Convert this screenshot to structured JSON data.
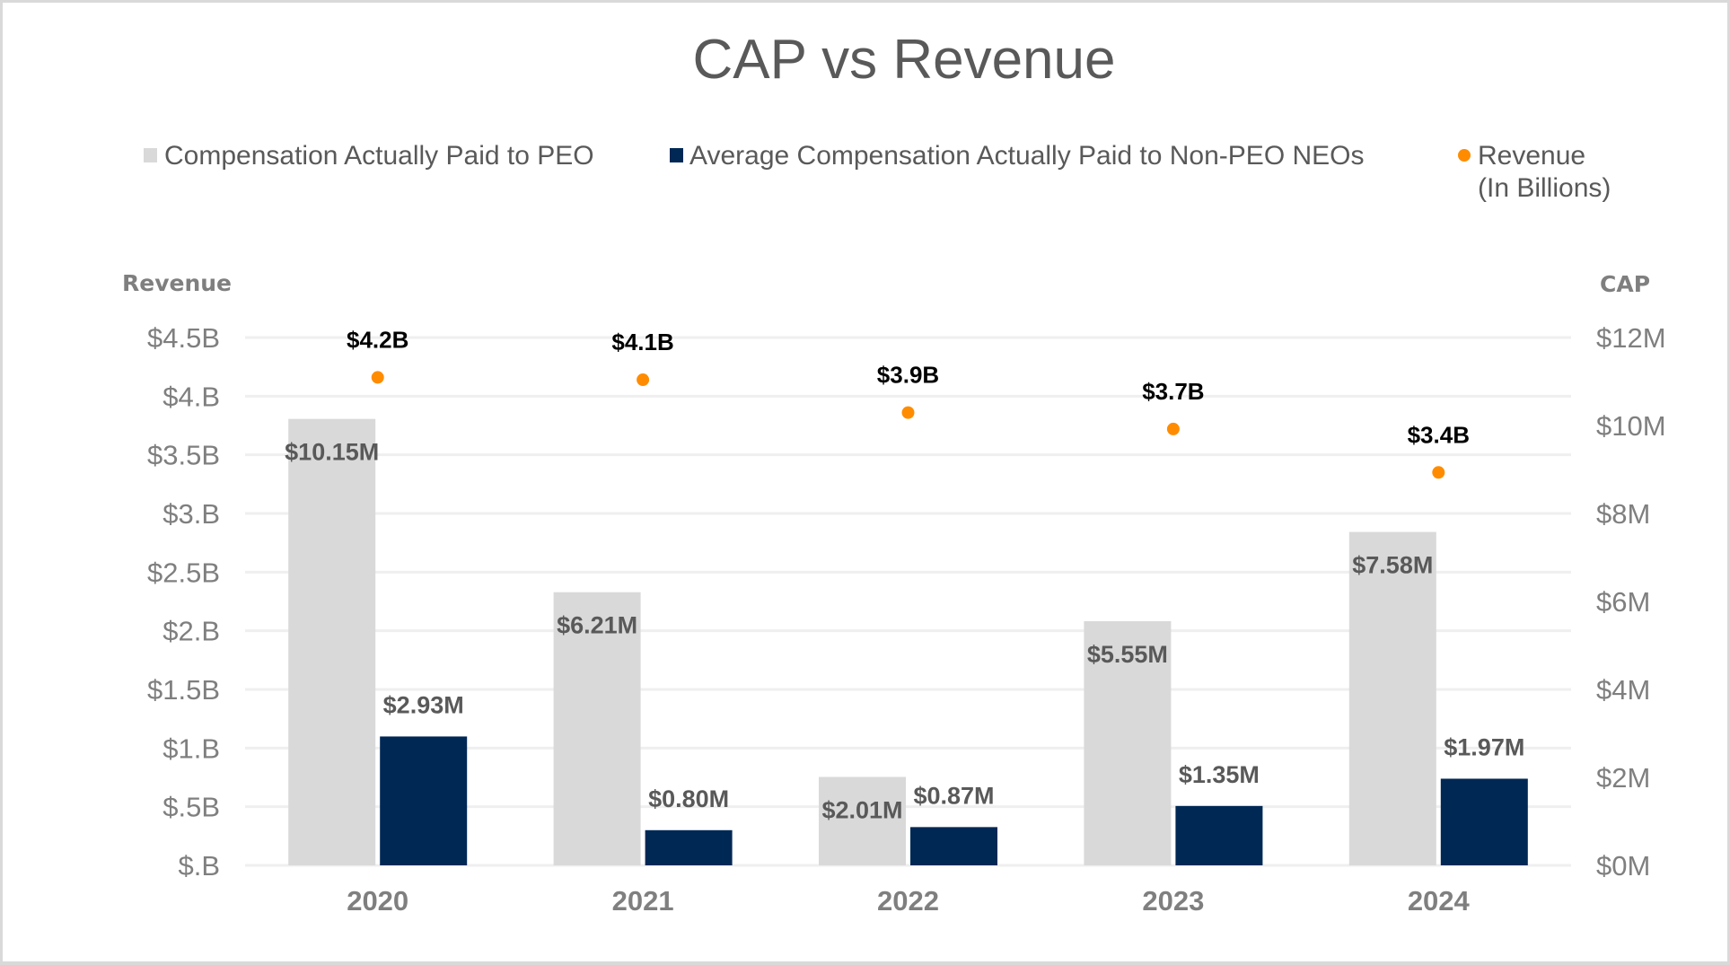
{
  "chart_data": {
    "type": "bar",
    "title": "CAP vs Revenue",
    "categories": [
      "2020",
      "2021",
      "2022",
      "2023",
      "2024"
    ],
    "series": [
      {
        "name": "Compensation Actually Paid to PEO",
        "kind": "bar",
        "axis": "right",
        "color": "#d9d9d9",
        "values": [
          10.15,
          6.21,
          2.01,
          5.55,
          7.58
        ],
        "labels": [
          "$10.15M",
          "$6.21M",
          "$2.01M",
          "$5.55M",
          "$7.58M"
        ],
        "label_position": "inside-top"
      },
      {
        "name": "Average Compensation Actually Paid to Non-PEO NEOs",
        "kind": "bar",
        "axis": "right",
        "color": "#002855",
        "values": [
          2.93,
          0.8,
          0.87,
          1.35,
          1.97
        ],
        "labels": [
          "$2.93M",
          "$0.80M",
          "$0.87M",
          "$1.35M",
          "$1.97M"
        ],
        "label_position": "outside-top"
      },
      {
        "name_line1": "Revenue",
        "name_line2": "(In Billions)",
        "name": "Revenue (In Billions)",
        "kind": "scatter",
        "axis": "left",
        "color": "#ff8c00",
        "values": [
          4.16,
          4.14,
          3.86,
          3.72,
          3.35
        ],
        "labels": [
          "$4.2B",
          "$4.1B",
          "$3.9B",
          "$3.7B",
          "$3.4B"
        ],
        "label_position": "above"
      }
    ],
    "left_axis": {
      "title": "Revenue",
      "ylim": [
        0,
        4.5
      ],
      "ticks": [
        0,
        0.5,
        1,
        1.5,
        2,
        2.5,
        3,
        3.5,
        4,
        4.5
      ],
      "tick_labels": [
        "$.B",
        "$.5B",
        "$1.B",
        "$1.5B",
        "$2.B",
        "$2.5B",
        "$3.B",
        "$3.5B",
        "$4.B",
        "$4.5B"
      ]
    },
    "right_axis": {
      "title": "CAP",
      "ylim": [
        0,
        12
      ],
      "ticks": [
        0,
        2,
        4,
        6,
        8,
        10,
        12
      ],
      "tick_labels": [
        "$0M",
        "$2M",
        "$4M",
        "$6M",
        "$8M",
        "$10M",
        "$12M"
      ]
    },
    "grid": true,
    "legend_position": "top"
  }
}
